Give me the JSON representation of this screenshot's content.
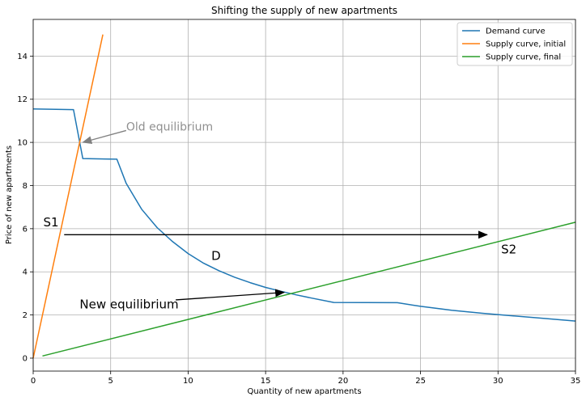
{
  "chart_data": {
    "type": "line",
    "title": "Shifting the supply of new apartments",
    "xlabel": "Quantity of new apartments",
    "ylabel": "Price of new apartments",
    "xlim": [
      0,
      35
    ],
    "ylim": [
      -0.6,
      15.7
    ],
    "xticks": [
      0,
      5,
      10,
      15,
      20,
      25,
      30,
      35
    ],
    "yticks": [
      0,
      2,
      4,
      6,
      8,
      10,
      12,
      14
    ],
    "grid": true,
    "legend_position": "top-right",
    "series": [
      {
        "name": "Demand curve",
        "color": "#1f77b4",
        "points": [
          [
            0,
            11.55
          ],
          [
            2.6,
            11.52
          ],
          [
            3.2,
            9.25
          ],
          [
            5.4,
            9.22
          ],
          [
            6,
            8.1
          ],
          [
            7,
            6.9
          ],
          [
            8,
            6.05
          ],
          [
            9,
            5.4
          ],
          [
            10,
            4.85
          ],
          [
            11,
            4.4
          ],
          [
            12,
            4.05
          ],
          [
            13,
            3.75
          ],
          [
            14,
            3.5
          ],
          [
            15,
            3.28
          ],
          [
            16,
            3.1
          ],
          [
            17,
            2.93
          ],
          [
            18,
            2.78
          ],
          [
            19.4,
            2.58
          ],
          [
            23.5,
            2.57
          ],
          [
            25,
            2.4
          ],
          [
            27,
            2.22
          ],
          [
            29,
            2.08
          ],
          [
            31,
            1.96
          ],
          [
            33,
            1.84
          ],
          [
            35,
            1.72
          ]
        ]
      },
      {
        "name": "Supply curve, initial",
        "color": "#ff7f0e",
        "points": [
          [
            0,
            0
          ],
          [
            4.5,
            15
          ]
        ]
      },
      {
        "name": "Supply curve, final",
        "color": "#2ca02c",
        "points": [
          [
            0.6,
            0.1
          ],
          [
            35,
            6.3
          ]
        ]
      }
    ],
    "annotations": [
      {
        "text": "Old equilibrium",
        "text_at": [
          6,
          10.55
        ],
        "arrow_from": [
          6,
          10.55
        ],
        "arrow_to": [
          3.2,
          10.0
        ],
        "color": "#808080",
        "style": "grey"
      },
      {
        "text": "New equilibrium",
        "text_at": [
          3,
          2.3
        ],
        "arrow_from": [
          9.2,
          2.7
        ],
        "arrow_to": [
          16.2,
          3.05
        ],
        "color": "#000000",
        "style": "big"
      },
      {
        "text": "S1",
        "text_at": [
          0.65,
          6.1
        ],
        "style": "big"
      },
      {
        "text": "S2",
        "text_at": [
          30.2,
          4.85
        ],
        "style": "big"
      },
      {
        "text": "D",
        "text_at": [
          11.5,
          4.55
        ],
        "style": "big"
      }
    ],
    "shift_arrow": {
      "from": [
        2,
        5.72
      ],
      "to": [
        29.3,
        5.72
      ],
      "color": "#000000"
    }
  }
}
